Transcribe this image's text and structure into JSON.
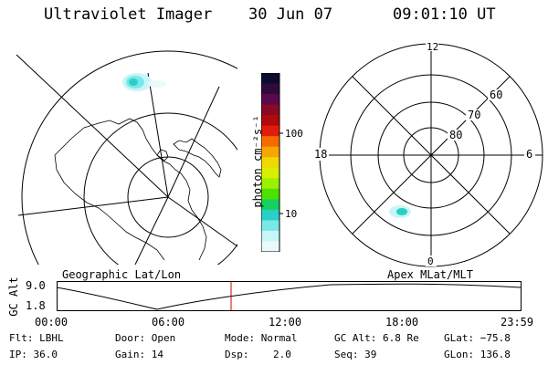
{
  "header": {
    "title": "Ultraviolet Imager",
    "date": "30 Jun 07",
    "time": "09:01:10 UT"
  },
  "colorbar": {
    "unit_label": "photon cm⁻²s⁻¹",
    "ticks": [
      "100",
      "10"
    ],
    "colors": [
      "#0b0b2e",
      "#2e0a3d",
      "#5a0a4a",
      "#880a24",
      "#b00a0a",
      "#e01c0a",
      "#f46b00",
      "#f7a600",
      "#f1d800",
      "#d8f000",
      "#9cf000",
      "#4ee000",
      "#18d060",
      "#2ad0c8",
      "#7ae8e8",
      "#c8f6f6",
      "#eafafa"
    ]
  },
  "polar_plot": {
    "mlt_labels": [
      "12",
      "18",
      "6",
      "0"
    ],
    "mlat_labels": [
      "60",
      "70",
      "80"
    ]
  },
  "altitude_panel": {
    "y_label": "GC Alt",
    "y_ticks": [
      "9.0",
      "1.8"
    ],
    "left_title": "Geographic Lat/Lon",
    "right_title": "Apex MLat/MLT",
    "x_ticks": [
      "00:00",
      "06:00",
      "12:00",
      "18:00",
      "23:59"
    ],
    "current_time_fraction": 0.376,
    "marker_color": "#cc0000"
  },
  "status": {
    "row1": [
      {
        "label": "Flt:",
        "value": "LBHL"
      },
      {
        "label": "Door:",
        "value": "Open"
      },
      {
        "label": "Mode:",
        "value": "Normal"
      },
      {
        "label": "GC Alt:",
        "value": "6.8 Re"
      },
      {
        "label": "GLat:",
        "value": "−75.8"
      }
    ],
    "row2": [
      {
        "label": "IP:",
        "value": "36.0"
      },
      {
        "label": "Gain:",
        "value": "14"
      },
      {
        "label": "Dsp:",
        "value": "2.0"
      },
      {
        "label": "Seq:",
        "value": "39"
      },
      {
        "label": "GLon:",
        "value": "136.8"
      }
    ]
  }
}
